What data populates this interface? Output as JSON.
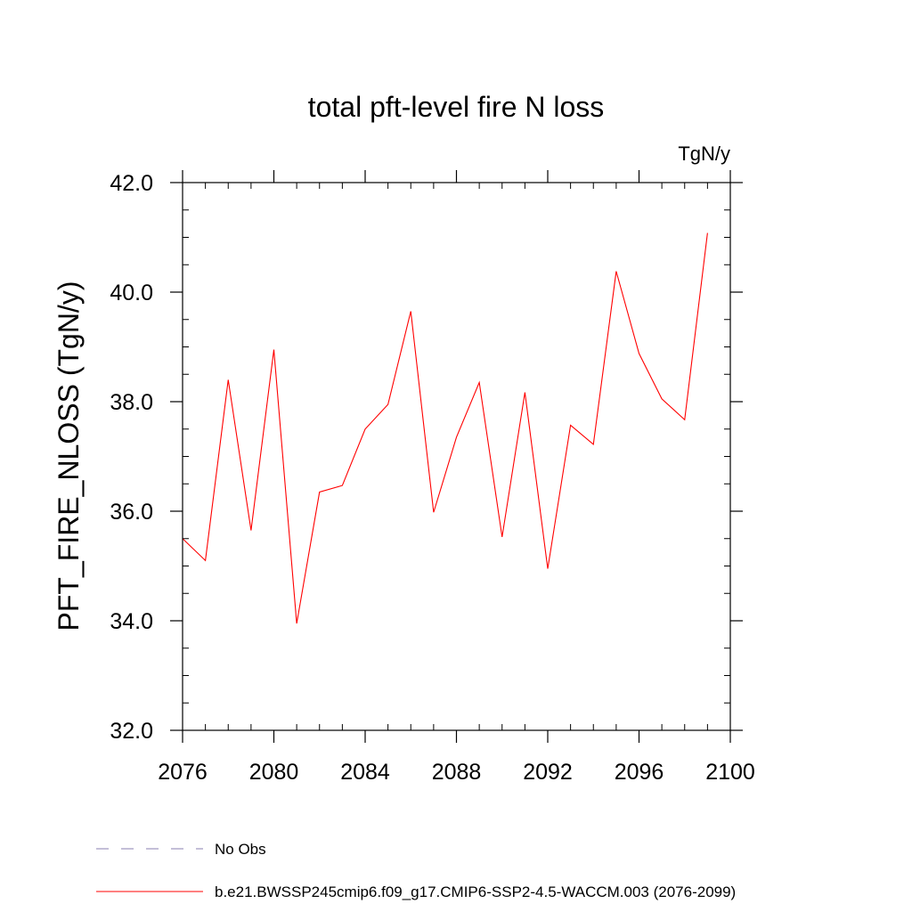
{
  "chart_data": {
    "type": "line",
    "title": "total pft-level fire N loss",
    "units_label": "TgN/y",
    "ylabel": "PFT_FIRE_NLOSS  (TgN/y)",
    "xlabel": "",
    "xlim": [
      2076,
      2100
    ],
    "ylim": [
      32.0,
      42.0
    ],
    "x_ticks": [
      2076,
      2080,
      2084,
      2088,
      2092,
      2096,
      2100
    ],
    "x_tick_labels": [
      "2076",
      "2080",
      "2084",
      "2088",
      "2092",
      "2096",
      "2100"
    ],
    "y_ticks": [
      32.0,
      34.0,
      36.0,
      38.0,
      40.0,
      42.0
    ],
    "y_tick_labels": [
      "32.0",
      "34.0",
      "36.0",
      "38.0",
      "40.0",
      "42.0"
    ],
    "x_minor_step": 1,
    "y_minor_step": 0.5,
    "grid": false,
    "legend_position": "bottom",
    "series": [
      {
        "name": "b.e21.BWSSP245cmip6.f09_g17.CMIP6-SSP2-4.5-WACCM.003 (2076-2099)",
        "color": "#ff0000",
        "x": [
          2076,
          2077,
          2078,
          2079,
          2080,
          2081,
          2082,
          2083,
          2084,
          2085,
          2086,
          2087,
          2088,
          2089,
          2090,
          2091,
          2092,
          2093,
          2094,
          2095,
          2096,
          2097,
          2098,
          2099
        ],
        "values": [
          35.5,
          35.1,
          38.4,
          35.65,
          38.95,
          33.95,
          36.35,
          36.47,
          37.5,
          37.95,
          39.65,
          35.98,
          37.35,
          38.35,
          35.53,
          38.17,
          34.95,
          37.57,
          37.22,
          40.38,
          38.88,
          38.05,
          37.67,
          41.08
        ]
      }
    ],
    "legend": [
      {
        "label": "No Obs",
        "style": "dashed",
        "color": "#8a7fb0"
      },
      {
        "label": "b.e21.BWSSP245cmip6.f09_g17.CMIP6-SSP2-4.5-WACCM.003 (2076-2099)",
        "style": "solid",
        "color": "#ff0000"
      }
    ]
  }
}
